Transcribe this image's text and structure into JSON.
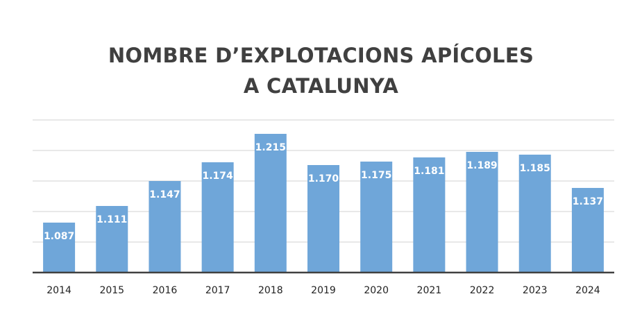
{
  "chart_data": {
    "type": "bar",
    "title_lines": [
      "NOMBRE D’EXPLOTACIONS APÍCOLES",
      "A CATALUNYA"
    ],
    "categories": [
      "2014",
      "2015",
      "2016",
      "2017",
      "2018",
      "2019",
      "2020",
      "2021",
      "2022",
      "2023",
      "2024"
    ],
    "values": [
      1087,
      1111,
      1147,
      1174,
      1215,
      1170,
      1175,
      1181,
      1189,
      1185,
      1137
    ],
    "value_labels": [
      "1.087",
      "1.111",
      "1.147",
      "1.174",
      "1.215",
      "1.170",
      "1.175",
      "1.181",
      "1.189",
      "1.185",
      "1.137"
    ],
    "ylim": [
      1015,
      1235
    ],
    "grid": true,
    "bar_color": "#6fa6d9",
    "grid_color": "#d9d9d9",
    "axis_color": "#404040"
  }
}
